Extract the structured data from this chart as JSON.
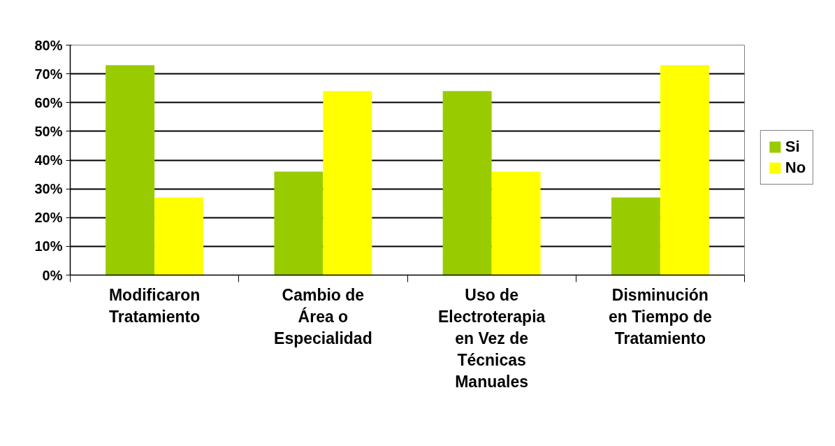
{
  "chart_data": {
    "type": "bar",
    "categories": [
      "Modificaron Tratamiento",
      "Cambio de Área o Especialidad",
      "Uso de Electroterapia en Vez de Técnicas Manuales",
      "Disminución en Tiempo de Tratamiento"
    ],
    "series": [
      {
        "name": "Si",
        "color": "#99cc00",
        "values": [
          73,
          36,
          64,
          27
        ]
      },
      {
        "name": "No",
        "color": "#ffff00",
        "values": [
          27,
          64,
          36,
          73
        ]
      }
    ],
    "ylim": [
      0,
      80
    ],
    "yticks": [
      {
        "value": 0,
        "label": "0%"
      },
      {
        "value": 10,
        "label": "10%"
      },
      {
        "value": 20,
        "label": "20%"
      },
      {
        "value": 30,
        "label": "30%"
      },
      {
        "value": 40,
        "label": "40%"
      },
      {
        "value": 50,
        "label": "50%"
      },
      {
        "value": 60,
        "label": "60%"
      },
      {
        "value": 70,
        "label": "70%"
      },
      {
        "value": 80,
        "label": "80%"
      }
    ],
    "grid": "y",
    "legend": "right"
  }
}
